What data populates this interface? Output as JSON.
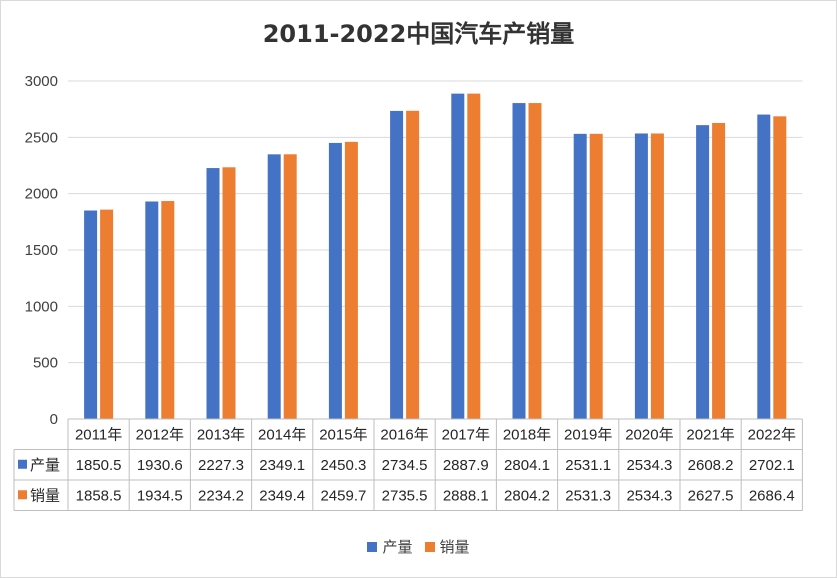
{
  "chart_data": {
    "type": "bar",
    "title": "2011-2022中国汽车产销量",
    "categories": [
      "2011年",
      "2012年",
      "2013年",
      "2014年",
      "2015年",
      "2016年",
      "2017年",
      "2018年",
      "2019年",
      "2020年",
      "2021年",
      "2022年"
    ],
    "series": [
      {
        "name": "产量",
        "color": "#4472C4",
        "values": [
          1850.5,
          1930.6,
          2227.3,
          2349.1,
          2450.3,
          2734.5,
          2887.9,
          2804.1,
          2531.1,
          2534.3,
          2608.2,
          2702.1
        ]
      },
      {
        "name": "销量",
        "color": "#ED7D31",
        "values": [
          1858.5,
          1934.5,
          2234.2,
          2349.4,
          2459.7,
          2735.5,
          2888.1,
          2804.2,
          2531.3,
          2534.3,
          2627.5,
          2686.4
        ]
      }
    ],
    "ylim": [
      0,
      3000
    ],
    "yticks": [
      0,
      500,
      1000,
      1500,
      2000,
      2500,
      3000
    ],
    "grid": true,
    "data_table": true,
    "legend_position": "bottom"
  }
}
